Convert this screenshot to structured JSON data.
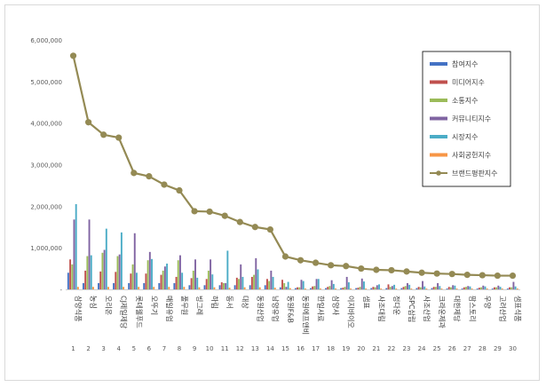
{
  "chart_data": {
    "type": "bar",
    "title": "",
    "xlabel": "",
    "ylabel": "",
    "ylim": [
      0,
      6000000
    ],
    "yticks": [
      "-",
      "1,000,000",
      "2,000,000",
      "3,000,000",
      "4,000,000",
      "5,000,000",
      "6,000,000"
    ],
    "grid": false,
    "legend_position": "top-right",
    "categories": [
      "삼양식품",
      "농심",
      "오리온",
      "CJ제일제당",
      "롯데웰푸드",
      "오뚜기",
      "매일유업",
      "풀무원",
      "빙그레",
      "하림",
      "동서",
      "대상",
      "동원산업",
      "남양유업",
      "동원F&B",
      "동원에프앤비",
      "한일사료",
      "삼양사",
      "이지바이오",
      "샘표",
      "사조대림",
      "정다운",
      "SPC삼립",
      "사조산업",
      "크라운제과",
      "대한제당",
      "팜스토리",
      "우양",
      "고려산업",
      "샘표식품"
    ],
    "category_numbers": [
      "1",
      "2",
      "3",
      "4",
      "5",
      "6",
      "7",
      "8",
      "9",
      "10",
      "11",
      "12",
      "13",
      "14",
      "15",
      "16",
      "17",
      "18",
      "19",
      "20",
      "21",
      "22",
      "23",
      "24",
      "25",
      "26",
      "27",
      "28",
      "29",
      "30"
    ],
    "series": [
      {
        "name": "참여지수",
        "color": "#4472c4",
        "values": [
          400000,
          150000,
          150000,
          150000,
          150000,
          150000,
          150000,
          150000,
          100000,
          100000,
          100000,
          100000,
          100000,
          100000,
          50000,
          30000,
          30000,
          30000,
          30000,
          30000,
          30000,
          30000,
          30000,
          30000,
          30000,
          20000,
          20000,
          20000,
          20000,
          20000
        ]
      },
      {
        "name": "미디어지수",
        "color": "#c0504d",
        "values": [
          720000,
          450000,
          430000,
          420000,
          380000,
          380000,
          350000,
          300000,
          270000,
          250000,
          170000,
          280000,
          300000,
          250000,
          230000,
          50000,
          70000,
          60000,
          40000,
          40000,
          60000,
          120000,
          60000,
          60000,
          60000,
          60000,
          50000,
          40000,
          50000,
          50000
        ]
      },
      {
        "name": "소통지수",
        "color": "#9bbb59",
        "values": [
          600000,
          800000,
          880000,
          800000,
          600000,
          700000,
          450000,
          700000,
          450000,
          450000,
          150000,
          250000,
          350000,
          200000,
          150000,
          50000,
          80000,
          80000,
          60000,
          60000,
          50000,
          60000,
          80000,
          50000,
          60000,
          50000,
          60000,
          50000,
          50000,
          50000
        ]
      },
      {
        "name": "커뮤니티지수",
        "color": "#8064a2",
        "values": [
          1680000,
          1680000,
          950000,
          840000,
          1350000,
          900000,
          550000,
          820000,
          720000,
          720000,
          150000,
          600000,
          750000,
          450000,
          60000,
          230000,
          250000,
          220000,
          300000,
          260000,
          100000,
          80000,
          150000,
          200000,
          150000,
          100000,
          80000,
          90000,
          90000,
          180000
        ]
      },
      {
        "name": "시장지수",
        "color": "#4bacc6",
        "values": [
          2050000,
          820000,
          1460000,
          1370000,
          400000,
          730000,
          620000,
          400000,
          280000,
          360000,
          930000,
          300000,
          480000,
          300000,
          180000,
          200000,
          250000,
          130000,
          170000,
          190000,
          120000,
          110000,
          110000,
          70000,
          80000,
          90000,
          70000,
          70000,
          60000,
          70000
        ]
      },
      {
        "name": "사회공헌지수",
        "color": "#f79646",
        "values": [
          60000,
          60000,
          60000,
          60000,
          60000,
          60000,
          60000,
          60000,
          50000,
          50000,
          40000,
          50000,
          50000,
          40000,
          30000,
          20000,
          20000,
          20000,
          20000,
          20000,
          20000,
          20000,
          20000,
          20000,
          20000,
          20000,
          20000,
          20000,
          20000,
          20000
        ]
      },
      {
        "name": "브랜드평판지수",
        "color": "#948a54",
        "type": "line",
        "values": [
          5620000,
          4020000,
          3720000,
          3650000,
          2800000,
          2720000,
          2520000,
          2380000,
          1880000,
          1870000,
          1770000,
          1620000,
          1500000,
          1440000,
          790000,
          700000,
          640000,
          580000,
          560000,
          500000,
          470000,
          460000,
          430000,
          400000,
          380000,
          370000,
          350000,
          340000,
          330000,
          330000
        ]
      }
    ]
  }
}
